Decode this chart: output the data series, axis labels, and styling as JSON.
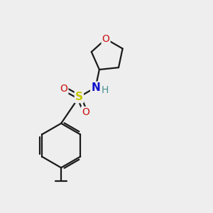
{
  "bg_color": "#eeeeee",
  "bond_color": "#1a1a1a",
  "S_color": "#c8c800",
  "N_color": "#1010cc",
  "O_color": "#cc1010",
  "H_color": "#4a9090",
  "line_width": 1.6,
  "figsize": [
    3.0,
    3.0
  ],
  "dpi": 100,
  "xlim": [
    0,
    10
  ],
  "ylim": [
    0,
    10
  ]
}
